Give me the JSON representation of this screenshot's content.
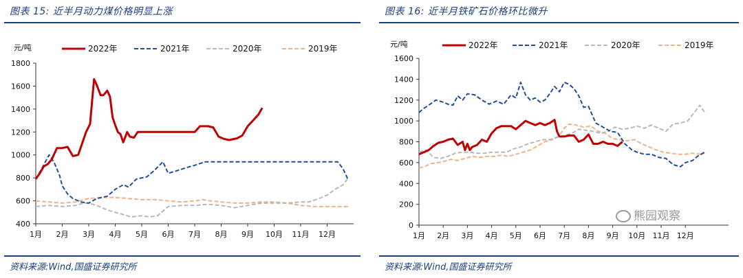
{
  "charts": [
    {
      "title": "图表 15:  近半月动力煤价格明显上涨",
      "source": "资料来源:Wind,国盛证券研究所"
    },
    {
      "title": "图表 16:  近半月铁矿石价格环比微升",
      "source": "资料来源:Wind,国盛证券研究所",
      "watermark": "熊园观察"
    }
  ],
  "chart_data": [
    {
      "type": "line",
      "unit_label": "元/吨",
      "x_categories": [
        "1月",
        "2月",
        "3月",
        "4月",
        "5月",
        "6月",
        "7月",
        "8月",
        "9月",
        "10月",
        "11月",
        "12月"
      ],
      "ylim": [
        400,
        1800
      ],
      "yticks": [
        400,
        600,
        800,
        1000,
        1200,
        1400,
        1600,
        1800
      ],
      "legend_position": "top",
      "grid": false,
      "series": [
        {
          "name": "2022年",
          "color": "#c00000",
          "style": "solid",
          "x": [
            1.0,
            1.15,
            1.3,
            1.45,
            1.6,
            1.8,
            2.0,
            2.2,
            2.4,
            2.6,
            2.75,
            2.9,
            3.05,
            3.2,
            3.3,
            3.45,
            3.55,
            3.7,
            3.8,
            3.9,
            4.0,
            4.1,
            4.2,
            4.3,
            4.45,
            4.55,
            4.7,
            4.85,
            5.0,
            5.2,
            5.5,
            6.0,
            6.5,
            7.0,
            7.2,
            7.5,
            7.7,
            7.9,
            8.1,
            8.3,
            8.6,
            8.8,
            9.0,
            9.2,
            9.4,
            9.55
          ],
          "y": [
            790,
            840,
            900,
            920,
            960,
            1060,
            1060,
            1070,
            990,
            1000,
            1100,
            1200,
            1270,
            1660,
            1610,
            1520,
            1520,
            1560,
            1510,
            1330,
            1260,
            1200,
            1180,
            1110,
            1200,
            1160,
            1150,
            1200,
            1200,
            1200,
            1200,
            1200,
            1200,
            1200,
            1250,
            1250,
            1240,
            1160,
            1140,
            1130,
            1145,
            1170,
            1250,
            1300,
            1350,
            1410
          ]
        },
        {
          "name": "2021年",
          "color": "#1f4e99",
          "style": "dashed",
          "x": [
            1.0,
            1.2,
            1.5,
            1.7,
            1.9,
            2.0,
            2.2,
            2.4,
            2.7,
            3.0,
            3.3,
            3.7,
            4.0,
            4.3,
            4.5,
            4.8,
            5.2,
            5.5,
            5.8,
            6.0,
            6.3,
            6.7,
            7.0,
            7.4,
            8.0,
            9.0,
            10.0,
            11.0,
            12.0,
            12.4,
            12.6,
            12.8
          ],
          "y": [
            790,
            870,
            1000,
            930,
            820,
            730,
            660,
            620,
            590,
            580,
            620,
            640,
            700,
            740,
            720,
            790,
            810,
            870,
            940,
            840,
            860,
            890,
            910,
            940,
            940,
            940,
            940,
            940,
            940,
            940,
            880,
            780
          ]
        },
        {
          "name": "2020年",
          "color": "#b8b8b8",
          "style": "dashed",
          "x": [
            1.0,
            1.5,
            2.0,
            2.5,
            2.8,
            3.0,
            3.3,
            3.7,
            4.0,
            4.3,
            4.6,
            5.0,
            5.3,
            5.6,
            5.8,
            6.0,
            6.5,
            7.0,
            7.5,
            8.0,
            8.5,
            9.0,
            9.5,
            10.0,
            10.5,
            11.0,
            11.3,
            11.7,
            12.0,
            12.3,
            12.6,
            12.8
          ],
          "y": [
            550,
            560,
            550,
            560,
            580,
            580,
            560,
            520,
            500,
            480,
            460,
            470,
            460,
            470,
            510,
            550,
            560,
            560,
            570,
            560,
            540,
            560,
            580,
            580,
            580,
            590,
            590,
            620,
            650,
            700,
            740,
            800
          ]
        },
        {
          "name": "2019年",
          "color": "#f4b183",
          "style": "dashed",
          "x": [
            1.0,
            1.5,
            2.0,
            2.5,
            3.0,
            3.5,
            4.0,
            4.5,
            5.0,
            5.5,
            6.0,
            6.5,
            7.0,
            7.3,
            7.6,
            8.0,
            8.5,
            9.0,
            9.5,
            10.0,
            10.5,
            11.0,
            11.5,
            12.0,
            12.5,
            12.8
          ],
          "y": [
            600,
            590,
            580,
            590,
            620,
            630,
            630,
            620,
            610,
            610,
            600,
            590,
            600,
            610,
            600,
            590,
            580,
            580,
            590,
            590,
            580,
            560,
            550,
            550,
            550,
            550
          ]
        }
      ]
    },
    {
      "type": "line",
      "unit_label": "元/吨",
      "x_categories": [
        "1月",
        "2月",
        "3月",
        "4月",
        "5月",
        "6月",
        "7月",
        "8月",
        "9月",
        "10月",
        "11月",
        "12月"
      ],
      "ylim": [
        0,
        1600
      ],
      "yticks": [
        0,
        200,
        400,
        600,
        800,
        1000,
        1200,
        1400,
        1600
      ],
      "legend_position": "top",
      "grid": false,
      "series": [
        {
          "name": "2022年",
          "color": "#c00000",
          "style": "solid",
          "x": [
            1.0,
            1.2,
            1.4,
            1.6,
            1.8,
            2.0,
            2.2,
            2.4,
            2.6,
            2.8,
            2.9,
            3.0,
            3.1,
            3.2,
            3.4,
            3.6,
            3.8,
            4.0,
            4.2,
            4.4,
            4.6,
            4.8,
            5.0,
            5.2,
            5.4,
            5.6,
            5.8,
            6.0,
            6.2,
            6.4,
            6.6,
            6.7,
            6.8,
            7.0,
            7.2,
            7.4,
            7.6,
            7.8,
            8.0,
            8.2,
            8.4,
            8.6,
            8.8,
            9.0,
            9.2,
            9.4
          ],
          "y": [
            680,
            700,
            720,
            760,
            790,
            800,
            820,
            830,
            770,
            800,
            720,
            780,
            720,
            750,
            770,
            820,
            800,
            880,
            930,
            950,
            950,
            950,
            920,
            960,
            1000,
            980,
            960,
            980,
            960,
            980,
            1010,
            900,
            850,
            850,
            860,
            860,
            800,
            820,
            870,
            780,
            780,
            800,
            780,
            780,
            760,
            800
          ]
        },
        {
          "name": "2021年",
          "color": "#1f4e99",
          "style": "dashed",
          "x": [
            1.0,
            1.2,
            1.4,
            1.7,
            2.0,
            2.2,
            2.4,
            2.6,
            2.8,
            3.0,
            3.3,
            3.6,
            3.9,
            4.2,
            4.5,
            4.8,
            5.0,
            5.2,
            5.4,
            5.6,
            5.8,
            6.0,
            6.2,
            6.4,
            6.6,
            6.8,
            7.0,
            7.2,
            7.4,
            7.6,
            7.8,
            8.0,
            8.3,
            8.6,
            8.9,
            9.2,
            9.5,
            9.8,
            10.0,
            10.3,
            10.6,
            10.9,
            11.2,
            11.5,
            11.8,
            12.0,
            12.3,
            12.5,
            12.8
          ],
          "y": [
            1080,
            1120,
            1150,
            1200,
            1180,
            1160,
            1150,
            1240,
            1200,
            1260,
            1250,
            1200,
            1160,
            1190,
            1160,
            1250,
            1220,
            1370,
            1250,
            1200,
            1220,
            1180,
            1200,
            1260,
            1330,
            1280,
            1370,
            1350,
            1310,
            1240,
            1130,
            1140,
            980,
            940,
            900,
            890,
            780,
            720,
            700,
            680,
            680,
            650,
            640,
            580,
            560,
            600,
            620,
            660,
            700
          ]
        },
        {
          "name": "2020年",
          "color": "#b8b8b8",
          "style": "dashed",
          "x": [
            1.0,
            1.3,
            1.6,
            1.9,
            2.2,
            2.5,
            2.8,
            3.1,
            3.4,
            3.7,
            4.0,
            4.3,
            4.6,
            4.9,
            5.2,
            5.5,
            5.8,
            6.1,
            6.4,
            6.7,
            7.0,
            7.3,
            7.6,
            7.9,
            8.2,
            8.5,
            8.8,
            9.1,
            9.4,
            9.7,
            10.0,
            10.3,
            10.6,
            10.9,
            11.2,
            11.5,
            11.8,
            12.1,
            12.4,
            12.6,
            12.8
          ],
          "y": [
            700,
            720,
            650,
            640,
            660,
            690,
            700,
            700,
            690,
            690,
            700,
            700,
            700,
            730,
            750,
            780,
            800,
            820,
            820,
            840,
            860,
            880,
            920,
            910,
            900,
            880,
            900,
            940,
            920,
            930,
            950,
            930,
            960,
            930,
            900,
            970,
            980,
            1000,
            1090,
            1150,
            1080
          ]
        },
        {
          "name": "2019年",
          "color": "#f4b183",
          "style": "dashed",
          "x": [
            1.0,
            1.2,
            1.5,
            1.8,
            2.0,
            2.3,
            2.6,
            2.9,
            3.2,
            3.5,
            3.8,
            4.1,
            4.4,
            4.7,
            5.0,
            5.3,
            5.6,
            5.9,
            6.2,
            6.5,
            6.8,
            7.0,
            7.2,
            7.5,
            7.8,
            8.1,
            8.4,
            8.7,
            9.0,
            9.3,
            9.6,
            9.9,
            10.2,
            10.5,
            10.8,
            11.1,
            11.4,
            11.7,
            12.0,
            12.3,
            12.6,
            12.8
          ],
          "y": [
            550,
            560,
            590,
            600,
            610,
            630,
            620,
            640,
            660,
            650,
            660,
            660,
            670,
            660,
            680,
            700,
            720,
            760,
            800,
            820,
            860,
            930,
            970,
            960,
            940,
            950,
            900,
            880,
            830,
            820,
            810,
            820,
            780,
            750,
            720,
            700,
            690,
            680,
            680,
            690,
            680,
            690
          ]
        }
      ]
    }
  ]
}
